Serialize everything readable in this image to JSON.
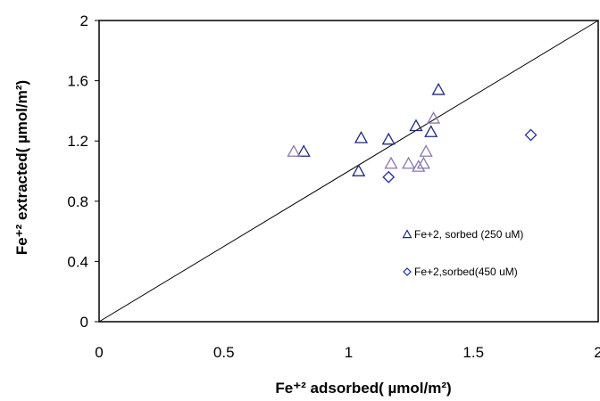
{
  "chart_data": {
    "type": "scatter",
    "xlim": [
      0,
      2
    ],
    "ylim": [
      0,
      2
    ],
    "x_ticks": [
      "0",
      "0.5",
      "1",
      "1.5",
      "2"
    ],
    "y_ticks": [
      "0",
      "0.4",
      "0.8",
      "1.2",
      "1.6",
      "2"
    ],
    "xlabel": "Fe⁺² adsorbed( µmol/m²)",
    "ylabel": "Fe⁺² extracted( µmol/m²)",
    "grid": false,
    "legend_position": "right",
    "reference_line": {
      "from": [
        0,
        0
      ],
      "to": [
        2,
        2
      ]
    },
    "series": [
      {
        "name": "Fe+2, sorbed (250 uM)",
        "marker": "triangle",
        "color": "#1f2a7a",
        "points": [
          [
            0.82,
            1.13
          ],
          [
            1.05,
            1.22
          ],
          [
            1.16,
            1.21
          ],
          [
            1.27,
            1.3
          ],
          [
            1.33,
            1.26
          ],
          [
            1.36,
            1.54
          ],
          [
            1.04,
            1.0
          ]
        ]
      },
      {
        "name": "Fe+2, sorbed (250 uM)",
        "marker": "triangle",
        "color": "#8a78a8",
        "legend": false,
        "points": [
          [
            0.78,
            1.13
          ],
          [
            1.17,
            1.05
          ],
          [
            1.24,
            1.05
          ],
          [
            1.28,
            1.03
          ],
          [
            1.3,
            1.05
          ],
          [
            1.31,
            1.13
          ],
          [
            1.34,
            1.35
          ]
        ]
      },
      {
        "name": "Fe+2,sorbed(450 uM)",
        "marker": "diamond",
        "color": "#1f2aa8",
        "points": [
          [
            1.16,
            0.96
          ],
          [
            1.73,
            1.24
          ]
        ]
      }
    ]
  }
}
